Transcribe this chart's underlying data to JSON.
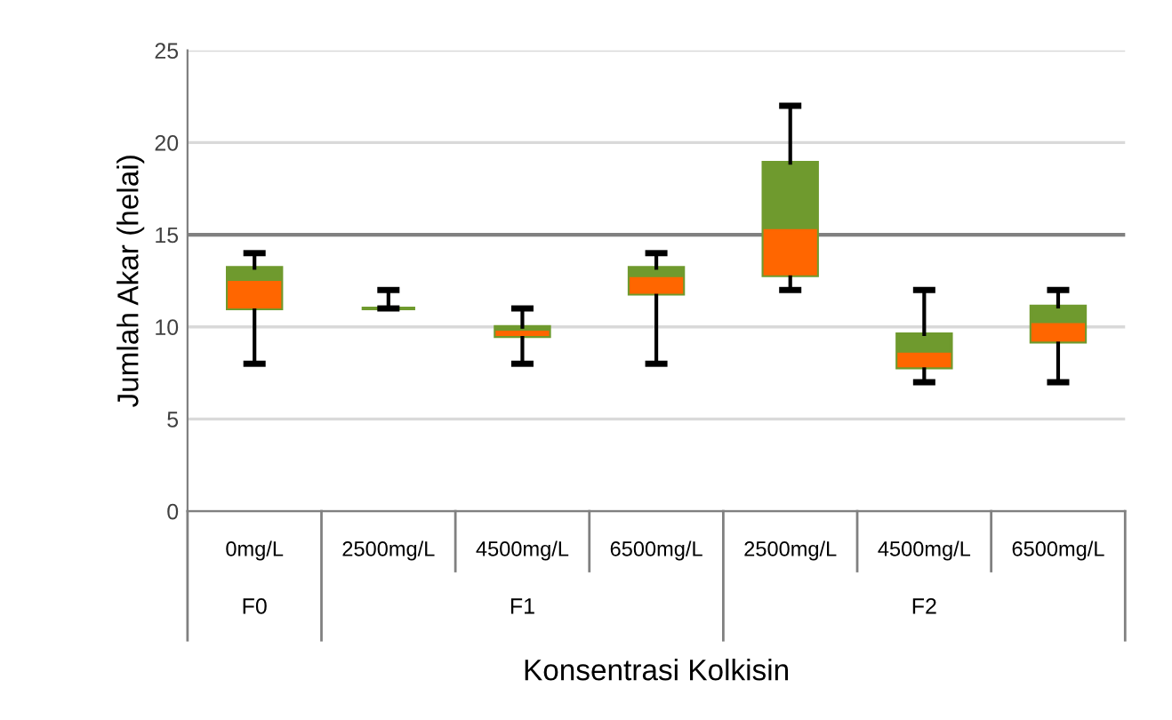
{
  "chart_data": {
    "type": "box",
    "ylabel": "Jumlah Akar (helai)",
    "xlabel": "Konsentrasi Kolkisin",
    "categories": [
      "0mg/L",
      "2500mg/L",
      "4500mg/L",
      "6500mg/L",
      "2500mg/L",
      "4500mg/L",
      "6500mg/L"
    ],
    "series": [
      {
        "color": "#6f9a2e",
        "colors": [
          "#ff6600",
          "#6f9a2e",
          "#ff6600",
          "#ff6600",
          "#ff6600",
          "#ff6600",
          "#ff6600"
        ],
        "boxes": [
          {
            "low": 8,
            "q1": 11,
            "median": 12.5,
            "q3": 13.2,
            "high": 14
          },
          {
            "low": 11,
            "q1": 11,
            "median": 11,
            "q3": 11,
            "high": 12
          },
          {
            "low": 8,
            "q1": 9.5,
            "median": 9.8,
            "q3": 10,
            "high": 11
          },
          {
            "low": 8,
            "q1": 11.8,
            "median": 12.7,
            "q3": 13.2,
            "high": 14
          },
          {
            "low": 12,
            "q1": 12.8,
            "median": 15.3,
            "q3": 18.9,
            "high": 22
          },
          {
            "low": 7,
            "q1": 7.8,
            "median": 8.6,
            "q3": 9.6,
            "high": 12
          },
          {
            "low": 7,
            "q1": 9.2,
            "median": 10.2,
            "q3": 11.1,
            "high": 12
          }
        ]
      }
    ],
    "ylim": [
      0,
      25
    ],
    "yticks": [
      0,
      5,
      10,
      15,
      20,
      25
    ],
    "grid": "y",
    "ref_lines": [
      {
        "axis": "y",
        "value": 15,
        "color": "#808080"
      }
    ],
    "annotations": [
      "F0",
      "F1",
      "F2"
    ]
  }
}
